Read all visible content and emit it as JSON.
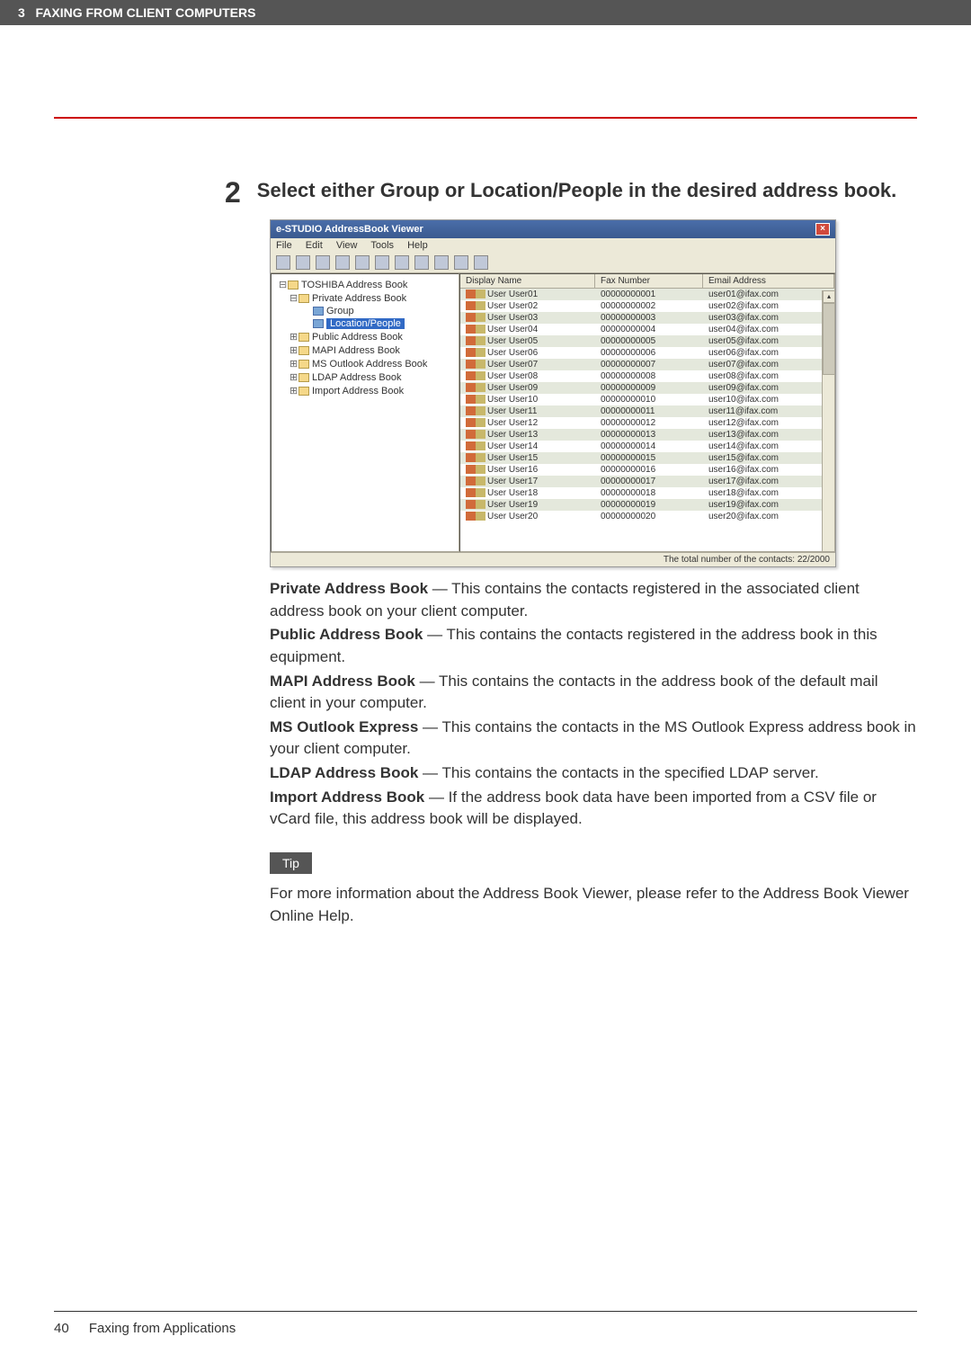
{
  "header": {
    "chapter_number": "3",
    "chapter_title": "FAXING FROM CLIENT COMPUTERS"
  },
  "step": {
    "number": "2",
    "text": "Select either Group or Location/People in the desired address book."
  },
  "screenshot": {
    "window_title": "e-STUDIO AddressBook Viewer",
    "menu": {
      "items": [
        "File",
        "Edit",
        "View",
        "Tools",
        "Help"
      ]
    },
    "tree": {
      "root": "TOSHIBA Address Book",
      "private": "Private Address Book",
      "group": "Group",
      "location_people": "Location/People",
      "public": "Public Address Book",
      "mapi": "MAPI Address Book",
      "outlook": "MS Outlook Address Book",
      "ldap": "LDAP Address Book",
      "import": "Import Address Book"
    },
    "list_headers": {
      "display_name": "Display Name",
      "fax_number": "Fax Number",
      "email": "Email Address"
    },
    "status": "The total number of the contacts: 22/2000",
    "colors": {
      "titlebar_start": "#4a6ea9",
      "titlebar_end": "#3a5a8f",
      "chrome_bg": "#ece9d8",
      "selected_bg": "#316ac5",
      "alt_row_bg": "#e4e8dc"
    },
    "rows": [
      {
        "name": "User User01",
        "fax": "00000000001",
        "email": "user01@ifax.com"
      },
      {
        "name": "User User02",
        "fax": "00000000002",
        "email": "user02@ifax.com"
      },
      {
        "name": "User User03",
        "fax": "00000000003",
        "email": "user03@ifax.com"
      },
      {
        "name": "User User04",
        "fax": "00000000004",
        "email": "user04@ifax.com"
      },
      {
        "name": "User User05",
        "fax": "00000000005",
        "email": "user05@ifax.com"
      },
      {
        "name": "User User06",
        "fax": "00000000006",
        "email": "user06@ifax.com"
      },
      {
        "name": "User User07",
        "fax": "00000000007",
        "email": "user07@ifax.com"
      },
      {
        "name": "User User08",
        "fax": "00000000008",
        "email": "user08@ifax.com"
      },
      {
        "name": "User User09",
        "fax": "00000000009",
        "email": "user09@ifax.com"
      },
      {
        "name": "User User10",
        "fax": "00000000010",
        "email": "user10@ifax.com"
      },
      {
        "name": "User User11",
        "fax": "00000000011",
        "email": "user11@ifax.com"
      },
      {
        "name": "User User12",
        "fax": "00000000012",
        "email": "user12@ifax.com"
      },
      {
        "name": "User User13",
        "fax": "00000000013",
        "email": "user13@ifax.com"
      },
      {
        "name": "User User14",
        "fax": "00000000014",
        "email": "user14@ifax.com"
      },
      {
        "name": "User User15",
        "fax": "00000000015",
        "email": "user15@ifax.com"
      },
      {
        "name": "User User16",
        "fax": "00000000016",
        "email": "user16@ifax.com"
      },
      {
        "name": "User User17",
        "fax": "00000000017",
        "email": "user17@ifax.com"
      },
      {
        "name": "User User18",
        "fax": "00000000018",
        "email": "user18@ifax.com"
      },
      {
        "name": "User User19",
        "fax": "00000000019",
        "email": "user19@ifax.com"
      },
      {
        "name": "User User20",
        "fax": "00000000020",
        "email": "user20@ifax.com"
      }
    ]
  },
  "descriptions": {
    "private_label": "Private Address Book",
    "private_text": " — This contains the contacts registered in the associated client address book on your client computer.",
    "public_label": "Public Address Book",
    "public_text": " — This contains the contacts registered in the address book in this equipment.",
    "mapi_label": "MAPI Address Book",
    "mapi_text": " — This contains the contacts in the address book of the default mail client in your computer.",
    "outlook_label": "MS Outlook Express",
    "outlook_text": " — This contains the contacts in the MS Outlook Express address book in your client computer.",
    "ldap_label": "LDAP Address Book",
    "ldap_text": " — This contains the contacts in the specified LDAP server.",
    "import_label": "Import Address Book",
    "import_text": " — If the address book data have been imported from a CSV file or vCard file, this address book will be displayed."
  },
  "tip": {
    "label": "Tip",
    "text": "For more information about the Address Book Viewer, please refer to the Address Book Viewer Online Help."
  },
  "footer": {
    "page_number": "40",
    "section": "Faxing from Applications"
  }
}
